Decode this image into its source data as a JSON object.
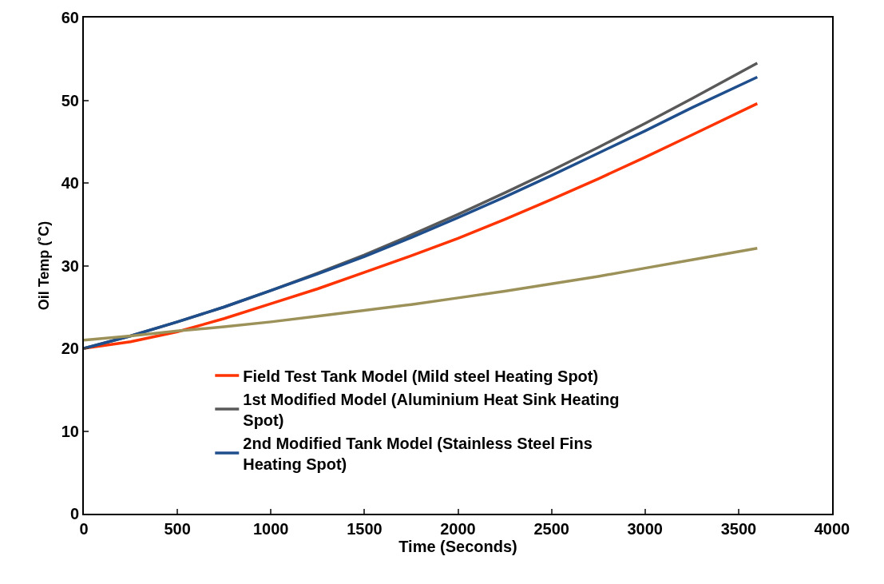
{
  "chart_data": {
    "type": "line",
    "xlabel": "Time (Seconds)",
    "ylabel": "Oil Temp (˚C)",
    "x": [
      0,
      250,
      500,
      750,
      1000,
      1250,
      1500,
      1750,
      2000,
      2250,
      2500,
      2750,
      3000,
      3250,
      3600
    ],
    "series": [
      {
        "name": "Field Test Tank Model (Mild steel Heating Spot)",
        "color": "#ff3300",
        "values": [
          20,
          20.8,
          22.0,
          23.6,
          25.4,
          27.2,
          29.2,
          31.2,
          33.3,
          35.6,
          38.0,
          40.5,
          43.1,
          45.8,
          49.6
        ]
      },
      {
        "name": "1st Modified Model (Aluminium Heat Sink Heating Spot)",
        "color": "#595959",
        "values": [
          20,
          21.5,
          23.2,
          25.0,
          27.0,
          29.1,
          31.3,
          33.7,
          36.2,
          38.8,
          41.5,
          44.3,
          47.2,
          50.2,
          54.5
        ]
      },
      {
        "name": "2nd Modified Tank Model (Stainless Steel Fins Heating Spot)",
        "color": "#1f4e8c",
        "values": [
          20,
          21.5,
          23.2,
          25.0,
          27.0,
          29.0,
          31.1,
          33.4,
          35.8,
          38.3,
          40.9,
          43.6,
          46.3,
          49.1,
          52.8
        ]
      },
      {
        "color": "#9c9158",
        "values": [
          21,
          21.5,
          22.1,
          22.6,
          23.2,
          23.9,
          24.6,
          25.3,
          26.1,
          26.9,
          27.8,
          28.7,
          29.7,
          30.7,
          32.1
        ]
      }
    ],
    "xlim": [
      0,
      4000
    ],
    "xticks": [
      0,
      500,
      1000,
      1500,
      2000,
      2500,
      3000,
      3500,
      4000
    ],
    "ylim": [
      0,
      60
    ],
    "yticks": [
      0,
      10,
      20,
      30,
      40,
      50,
      60
    ],
    "grid": false,
    "legend": "bottom",
    "marker": "none",
    "line_style": "solid"
  }
}
